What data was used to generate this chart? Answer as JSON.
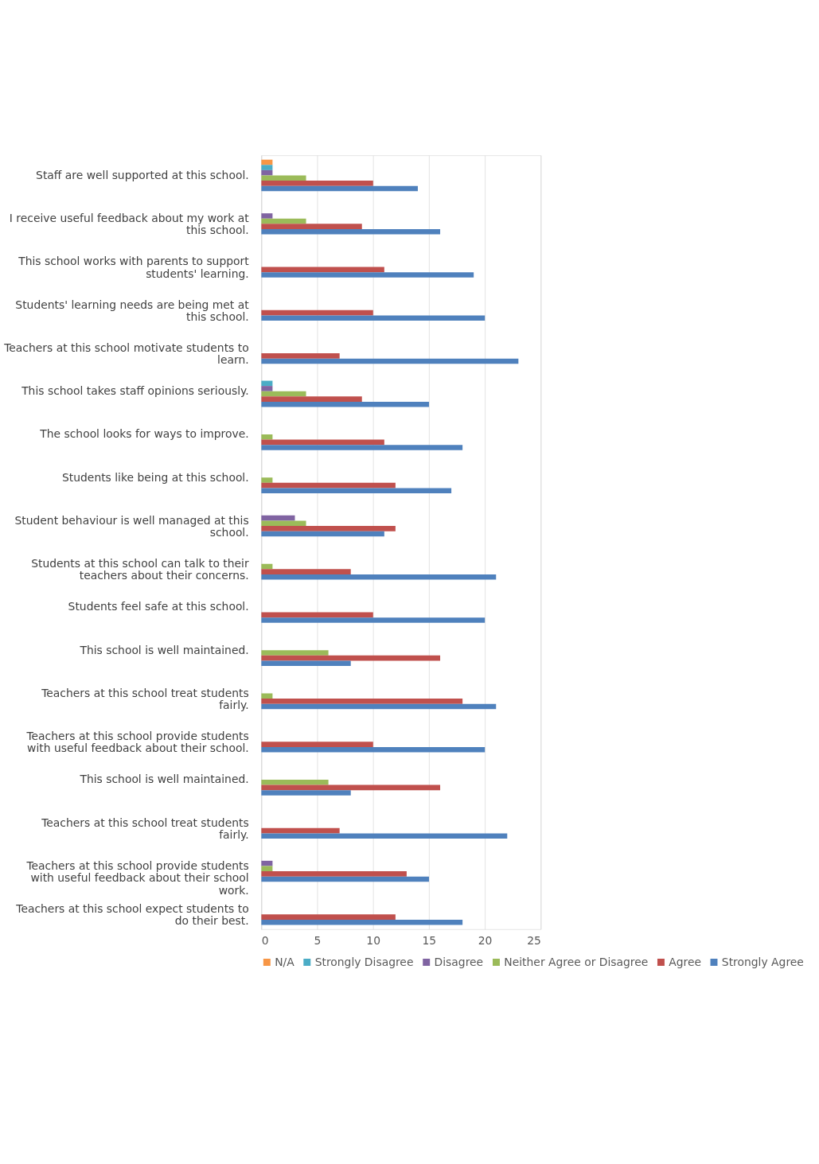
{
  "chart_data": {
    "type": "bar",
    "orientation": "horizontal",
    "categories": [
      "Staff are well supported at this school.",
      "I receive useful feedback about my work at this school.",
      "This school works with parents to support students' learning.",
      "Students' learning needs are being met at this school.",
      "Teachers at this school motivate students to learn.",
      "This school takes staff opinions seriously.",
      "The school looks for ways to improve.",
      "Students like being at this school.",
      "Student behaviour is well managed at this school.",
      "Students at this school can talk to their teachers about their concerns.",
      "Students feel safe at this school.",
      "This school is well maintained.",
      "Teachers at this school treat students fairly.",
      "Teachers at this school provide students with useful feedback about their school.",
      "This school is well maintained.",
      "Teachers at this school treat students fairly.",
      "Teachers at this school provide students with useful feedback about their school work.",
      "Teachers at this school expect students to do their best."
    ],
    "series": [
      {
        "name": "N/A",
        "color": "#f79646",
        "values": [
          1,
          null,
          null,
          null,
          null,
          null,
          null,
          null,
          null,
          null,
          null,
          null,
          null,
          null,
          null,
          null,
          null,
          null
        ]
      },
      {
        "name": "Strongly Disagree",
        "color": "#4bacc6",
        "values": [
          1,
          null,
          null,
          null,
          null,
          1,
          null,
          null,
          null,
          null,
          null,
          null,
          null,
          null,
          null,
          null,
          null,
          null
        ]
      },
      {
        "name": "Disagree",
        "color": "#8064a2",
        "values": [
          1,
          1,
          null,
          null,
          null,
          1,
          null,
          null,
          3,
          null,
          null,
          null,
          null,
          null,
          null,
          null,
          1,
          null
        ]
      },
      {
        "name": "Neither Agree or Disagree",
        "color": "#9bbb59",
        "values": [
          4,
          4,
          null,
          null,
          null,
          4,
          1,
          1,
          4,
          1,
          null,
          6,
          1,
          null,
          6,
          null,
          1,
          null
        ]
      },
      {
        "name": "Agree",
        "color": "#c0504d",
        "values": [
          10,
          9,
          11,
          10,
          7,
          9,
          11,
          12,
          12,
          8,
          10,
          16,
          18,
          10,
          16,
          7,
          13,
          12
        ]
      },
      {
        "name": "Strongly Agree",
        "color": "#4f81bd",
        "values": [
          14,
          16,
          19,
          20,
          23,
          15,
          18,
          17,
          11,
          21,
          20,
          8,
          21,
          20,
          8,
          22,
          15,
          18
        ]
      }
    ],
    "xlim": [
      0,
      25
    ],
    "xticks": [
      0,
      5,
      10,
      15,
      20,
      25
    ],
    "grid": "x",
    "legend": "bottom"
  }
}
